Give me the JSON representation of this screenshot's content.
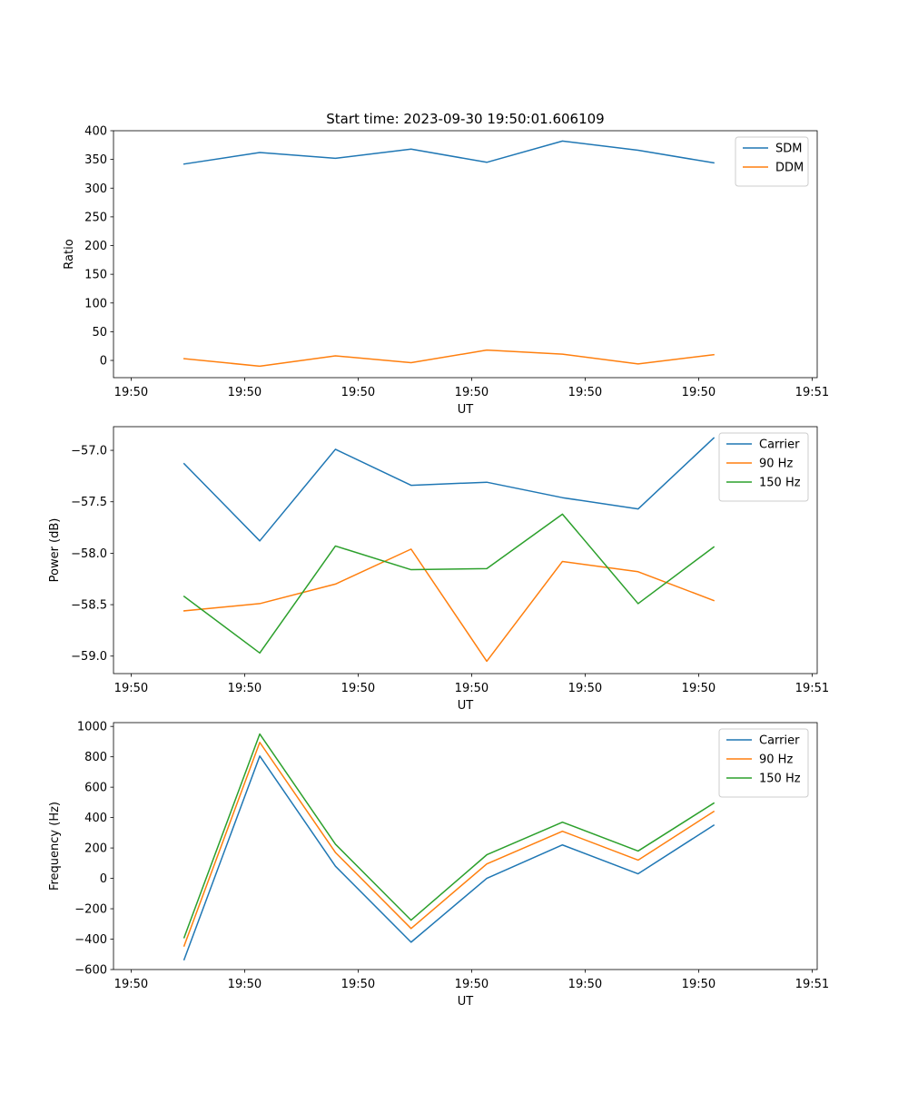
{
  "figure_title": "Start time: 2023-09-30 19:50:01.606109",
  "colors": {
    "blue": "#1f77b4",
    "orange": "#ff7f0e",
    "green": "#2ca02c"
  },
  "chart_data": [
    {
      "type": "line",
      "xlabel": "UT",
      "ylabel": "Ratio",
      "ylim": [
        -30,
        400
      ],
      "yticks": [
        0,
        50,
        100,
        150,
        200,
        250,
        300,
        350,
        400
      ],
      "ytick_labels": [
        "0",
        "50",
        "100",
        "150",
        "200",
        "250",
        "300",
        "350",
        "400"
      ],
      "xlim": [
        -0.233,
        9.067
      ],
      "xticks": [
        0,
        1.5,
        3,
        4.5,
        6,
        7.5,
        9
      ],
      "xtick_labels": [
        "19:50",
        "19:50",
        "19:50",
        "19:50",
        "19:50",
        "19:50",
        "19:51"
      ],
      "x": [
        0.7,
        1.7,
        2.7,
        3.7,
        4.7,
        5.7,
        6.7,
        7.7
      ],
      "legend_position": "top-right",
      "series": [
        {
          "name": "SDM",
          "color": "#1f77b4",
          "values": [
            342,
            362,
            352,
            368,
            345,
            382,
            366,
            344
          ]
        },
        {
          "name": "DDM",
          "color": "#ff7f0e",
          "values": [
            3,
            -10,
            8,
            -4,
            18,
            11,
            -6,
            10
          ]
        }
      ]
    },
    {
      "type": "line",
      "xlabel": "UT",
      "ylabel": "Power (dB)",
      "ylim": [
        -59.17,
        -56.77
      ],
      "yticks": [
        -59.0,
        -58.5,
        -58.0,
        -57.5,
        -57.0
      ],
      "ytick_labels": [
        "−59.0",
        "−58.5",
        "−58.0",
        "−57.5",
        "−57.0"
      ],
      "xlim": [
        -0.233,
        9.067
      ],
      "xticks": [
        0,
        1.5,
        3,
        4.5,
        6,
        7.5,
        9
      ],
      "xtick_labels": [
        "19:50",
        "19:50",
        "19:50",
        "19:50",
        "19:50",
        "19:50",
        "19:51"
      ],
      "x": [
        0.7,
        1.7,
        2.7,
        3.7,
        4.7,
        5.7,
        6.7,
        7.7
      ],
      "legend_position": "top-right",
      "series": [
        {
          "name": "Carrier",
          "color": "#1f77b4",
          "values": [
            -57.13,
            -57.88,
            -56.99,
            -57.34,
            -57.31,
            -57.46,
            -57.57,
            -56.88
          ]
        },
        {
          "name": "90 Hz",
          "color": "#ff7f0e",
          "values": [
            -58.56,
            -58.49,
            -58.3,
            -57.96,
            -59.05,
            -58.08,
            -58.18,
            -58.46
          ]
        },
        {
          "name": "150 Hz",
          "color": "#2ca02c",
          "values": [
            -58.42,
            -58.97,
            -57.93,
            -58.16,
            -58.15,
            -57.62,
            -58.49,
            -57.94
          ]
        }
      ]
    },
    {
      "type": "line",
      "xlabel": "UT",
      "ylabel": "Frequency (Hz)",
      "ylim": [
        -600,
        1025
      ],
      "yticks": [
        -600,
        -400,
        -200,
        0,
        200,
        400,
        600,
        800,
        1000
      ],
      "ytick_labels": [
        "−600",
        "−400",
        "−200",
        "0",
        "200",
        "400",
        "600",
        "800",
        "1000"
      ],
      "xlim": [
        -0.233,
        9.067
      ],
      "xticks": [
        0,
        1.5,
        3,
        4.5,
        6,
        7.5,
        9
      ],
      "xtick_labels": [
        "19:50",
        "19:50",
        "19:50",
        "19:50",
        "19:50",
        "19:50",
        "19:51"
      ],
      "x": [
        0.7,
        1.7,
        2.7,
        3.7,
        4.7,
        5.7,
        6.7,
        7.7
      ],
      "legend_position": "top-right",
      "series": [
        {
          "name": "Carrier",
          "color": "#1f77b4",
          "values": [
            -535,
            805,
            80,
            -420,
            0,
            220,
            30,
            350
          ]
        },
        {
          "name": "90 Hz",
          "color": "#ff7f0e",
          "values": [
            -445,
            895,
            170,
            -330,
            95,
            310,
            120,
            440
          ]
        },
        {
          "name": "150 Hz",
          "color": "#2ca02c",
          "values": [
            -390,
            950,
            225,
            -275,
            155,
            370,
            180,
            495
          ]
        }
      ]
    }
  ]
}
